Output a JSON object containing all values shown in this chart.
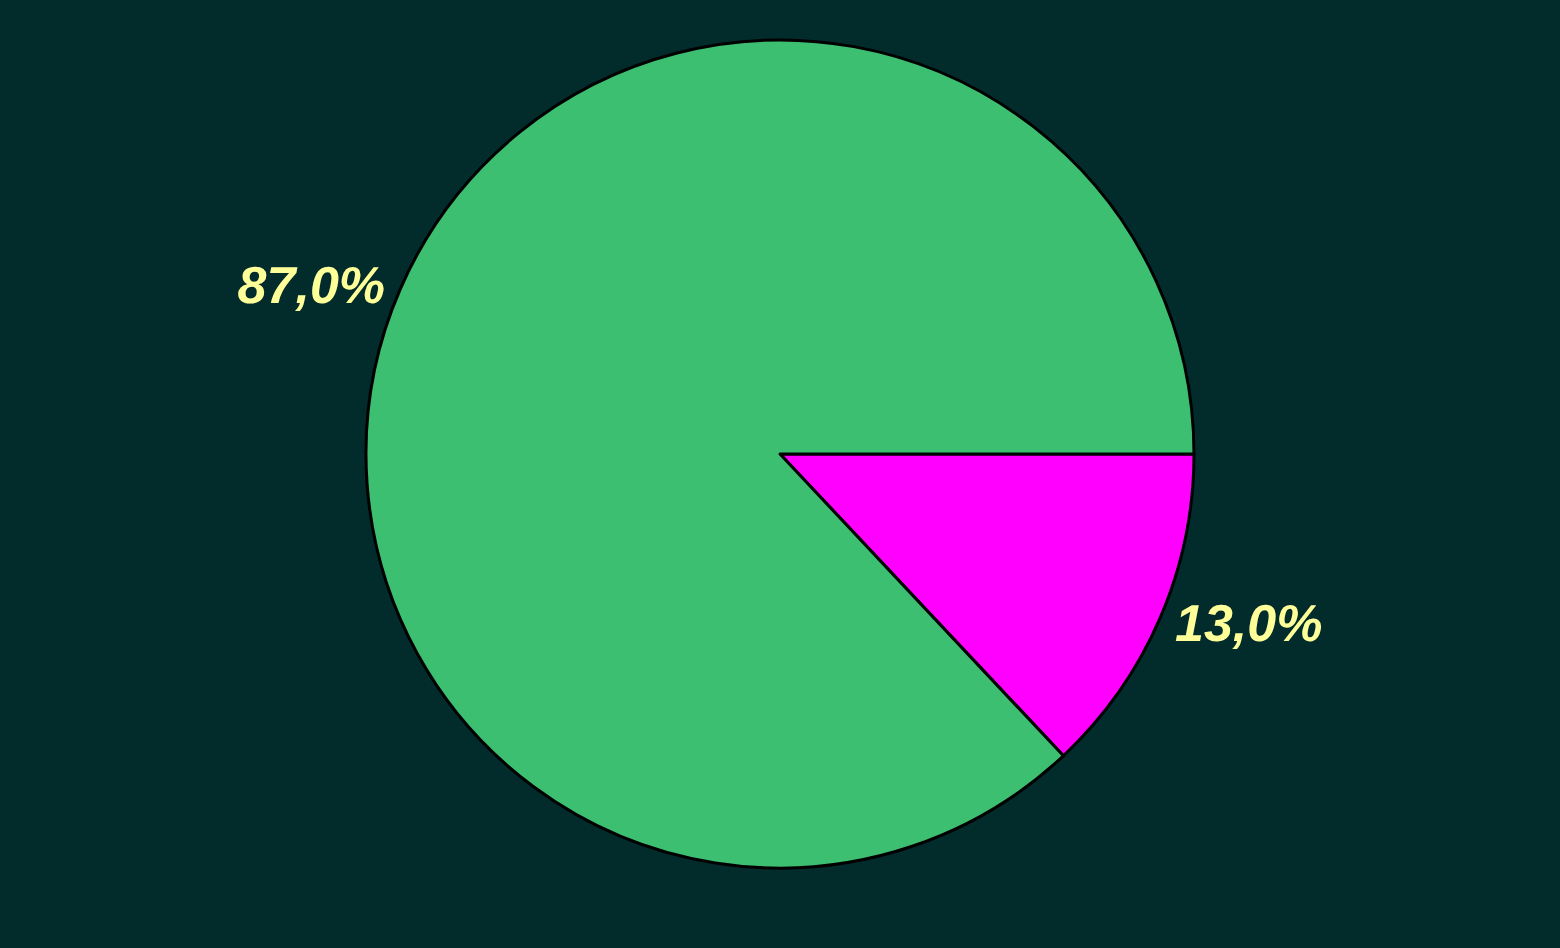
{
  "chart_data": {
    "type": "pie",
    "categories": [
      null,
      null
    ],
    "values": [
      13,
      87
    ],
    "colors": [
      "#ff00ff",
      "#3dbf72"
    ],
    "value_labels": [
      "13,0%",
      "87,0%"
    ],
    "legend": false
  }
}
